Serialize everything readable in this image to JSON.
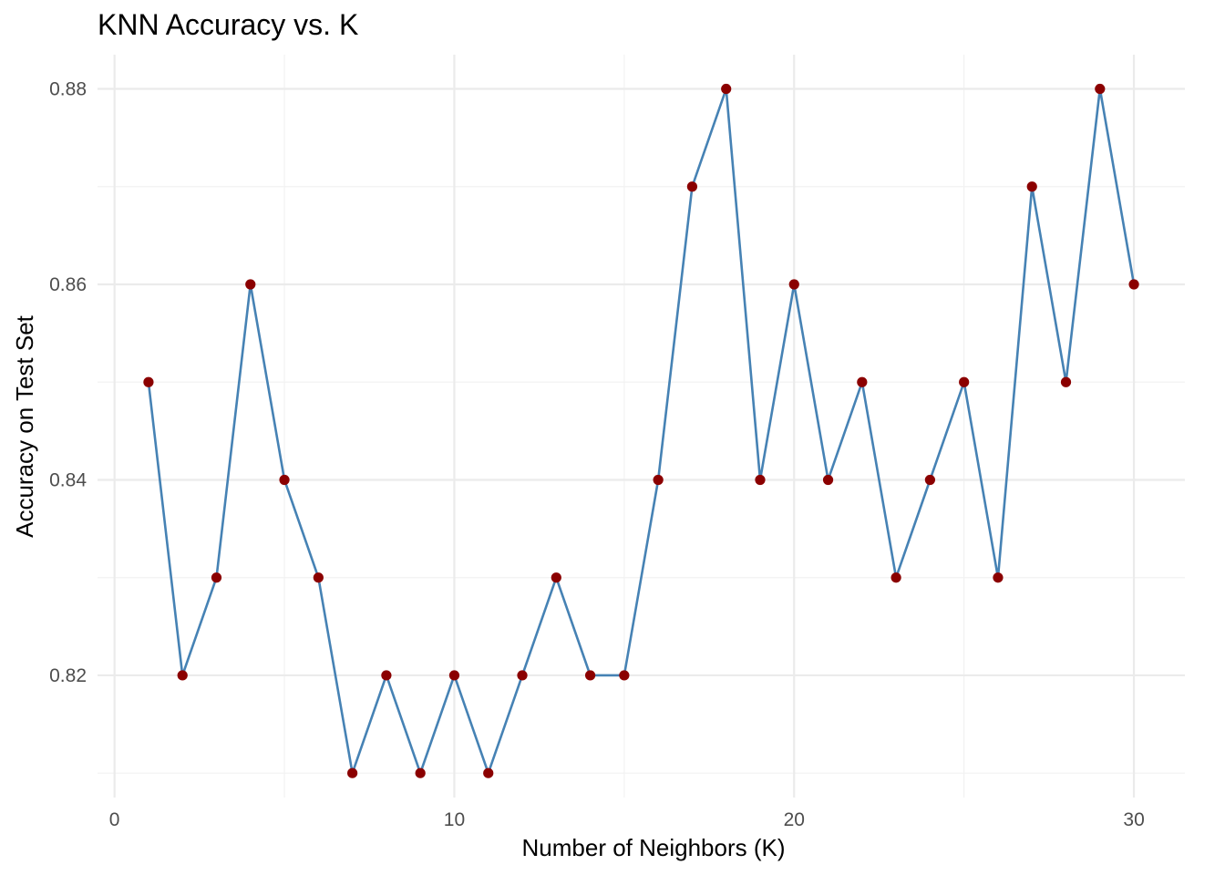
{
  "chart_data": {
    "type": "line",
    "title": "KNN Accuracy vs. K",
    "xlabel": "Number of Neighbors (K)",
    "ylabel": "Accuracy on Test Set",
    "xlim": [
      -0.5,
      31.5
    ],
    "ylim": [
      0.8075,
      0.8835
    ],
    "x_ticks": [
      0,
      10,
      20,
      30
    ],
    "x_tick_labels": [
      "0",
      "10",
      "20",
      "30"
    ],
    "x_minor_ticks": [
      5,
      15,
      25
    ],
    "y_ticks": [
      0.82,
      0.84,
      0.86,
      0.88
    ],
    "y_tick_labels": [
      "0.82",
      "0.84",
      "0.86",
      "0.88"
    ],
    "y_minor_ticks": [
      0.81,
      0.83,
      0.85,
      0.87
    ],
    "grid": true,
    "legend": "none",
    "line_color": "#4682B4",
    "point_color": "#8B0000",
    "series": [
      {
        "x": [
          1,
          2,
          3,
          4,
          5,
          6,
          7,
          8,
          9,
          10,
          11,
          12,
          13,
          14,
          15,
          16,
          17,
          18,
          19,
          20,
          21,
          22,
          23,
          24,
          25,
          26,
          27,
          28,
          29,
          30
        ],
        "values": [
          0.85,
          0.82,
          0.83,
          0.86,
          0.84,
          0.83,
          0.81,
          0.82,
          0.81,
          0.82,
          0.81,
          0.82,
          0.83,
          0.82,
          0.82,
          0.84,
          0.87,
          0.88,
          0.84,
          0.86,
          0.84,
          0.85,
          0.83,
          0.84,
          0.85,
          0.83,
          0.87,
          0.85,
          0.88,
          0.86
        ]
      }
    ]
  }
}
